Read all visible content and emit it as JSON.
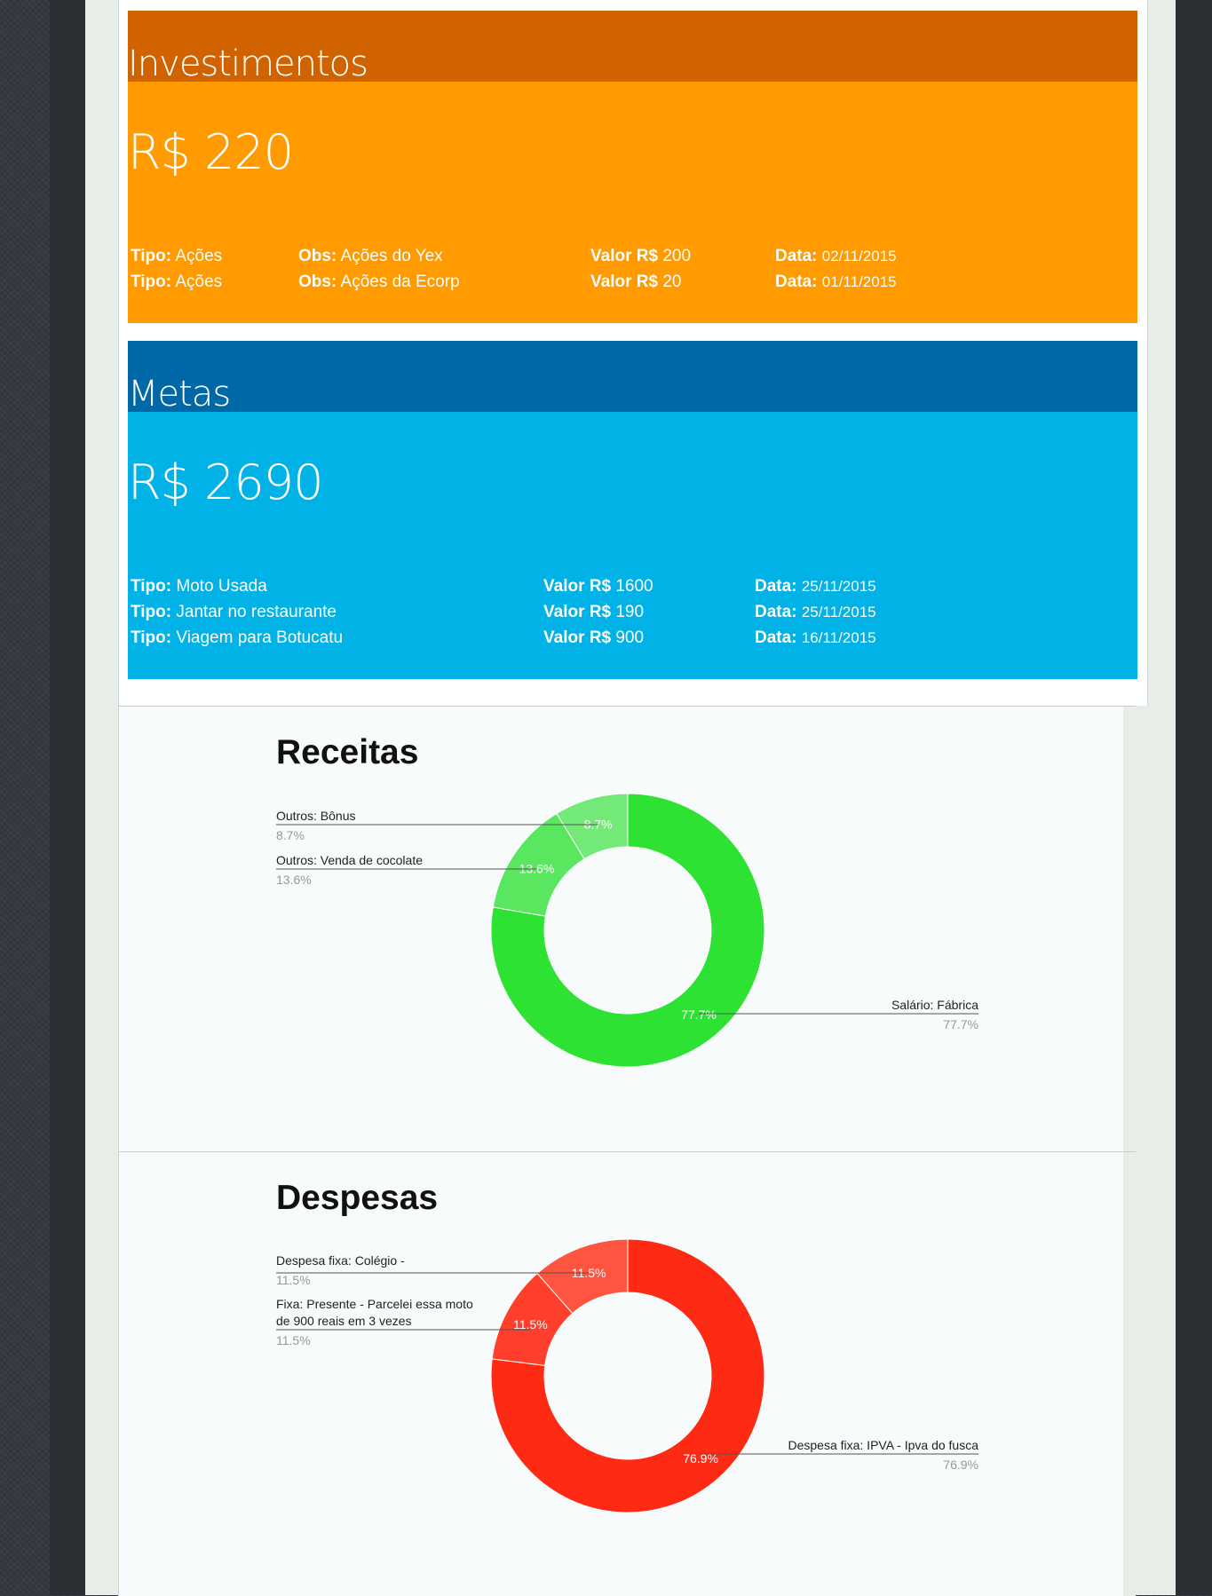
{
  "investimentos": {
    "title": "Investimentos",
    "total": "R$ 220",
    "labels": {
      "tipo": "Tipo:",
      "obs": "Obs:",
      "valor": "Valor R$",
      "data": "Data:"
    },
    "rows": [
      {
        "tipo": "Ações",
        "obs": "Ações do Yex",
        "valor": "200",
        "data": "02/11/2015"
      },
      {
        "tipo": "Ações",
        "obs": "Ações da Ecorp",
        "valor": "20",
        "data": "01/11/2015"
      }
    ]
  },
  "metas": {
    "title": "Metas",
    "total": "R$ 2690",
    "labels": {
      "tipo": "Tipo:",
      "valor": "Valor R$",
      "data": "Data:"
    },
    "rows": [
      {
        "tipo": "Moto Usada",
        "valor": "1600",
        "data": "25/11/2015"
      },
      {
        "tipo": "Jantar no restaurante",
        "valor": "190",
        "data": "25/11/2015"
      },
      {
        "tipo": "Viagem para Botucatu",
        "valor": "900",
        "data": "16/11/2015"
      }
    ]
  },
  "chart_data": [
    {
      "type": "pie",
      "title": "Receitas",
      "donut": true,
      "categories": [
        "Salário: Fábrica",
        "Outros: Venda de cocolate",
        "Outros: Bônus"
      ],
      "values": [
        77.7,
        13.6,
        8.7
      ],
      "labels_pct": [
        "77.7%",
        "13.6%",
        "8.7%"
      ],
      "colors": [
        "#2de232",
        "#5ae760",
        "#73ea78"
      ]
    },
    {
      "type": "pie",
      "title": "Despesas",
      "donut": true,
      "categories": [
        "Despesa fixa: IPVA - Ipva do fusca",
        "Fixa: Presente - Parcelei essa moto de 900 reais em 3 vezes",
        "Despesa fixa: Colégio -"
      ],
      "category_lines": [
        [
          "Despesa fixa: IPVA - Ipva do fusca"
        ],
        [
          "Fixa: Presente - Parcelei essa moto",
          "de 900 reais em 3 vezes"
        ],
        [
          "Despesa fixa: Colégio -"
        ]
      ],
      "values": [
        76.9,
        11.5,
        11.5
      ],
      "labels_pct": [
        "76.9%",
        "11.5%",
        "11.5%"
      ],
      "colors": [
        "#ff2a13",
        "#ff3f2b",
        "#ff5440"
      ]
    }
  ]
}
